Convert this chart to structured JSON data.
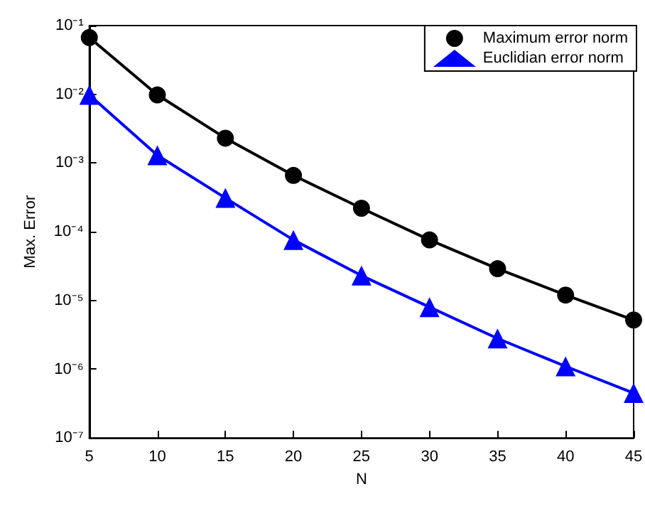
{
  "chart_data": {
    "type": "line",
    "xlabel": "N",
    "ylabel": "Max. Error",
    "x": [
      5,
      10,
      15,
      20,
      25,
      30,
      35,
      40,
      45
    ],
    "series": [
      {
        "name": "Maximum error norm",
        "color": "#000000",
        "marker": "circle",
        "values": [
          0.067,
          0.0098,
          0.0023,
          0.00066,
          0.00022,
          7.6e-05,
          2.9e-05,
          1.2e-05,
          5.2e-06
        ]
      },
      {
        "name": "Euclidian error norm",
        "color": "#0000ff",
        "marker": "triangle",
        "values": [
          0.0098,
          0.0013,
          0.00031,
          7.6e-05,
          2.3e-05,
          8e-06,
          2.8e-06,
          1.1e-06,
          4.5e-07
        ]
      }
    ],
    "xlim": [
      5,
      45
    ],
    "xticks": [
      5,
      10,
      15,
      20,
      25,
      30,
      35,
      40,
      45
    ],
    "ylim": [
      1e-07,
      0.1
    ],
    "log": "y",
    "yticks": [
      {
        "value": 1e-07,
        "label": "10⁻⁷"
      },
      {
        "value": 1e-06,
        "label": "10⁻⁶"
      },
      {
        "value": 1e-05,
        "label": "10⁻⁵"
      },
      {
        "value": 0.0001,
        "label": "10⁻⁴"
      },
      {
        "value": 0.001,
        "label": "10⁻³"
      },
      {
        "value": 0.01,
        "label": "10⁻²"
      },
      {
        "value": 0.1,
        "label": "10⁻¹"
      }
    ],
    "legend": "top right",
    "grid": false,
    "line_style": "solid"
  }
}
